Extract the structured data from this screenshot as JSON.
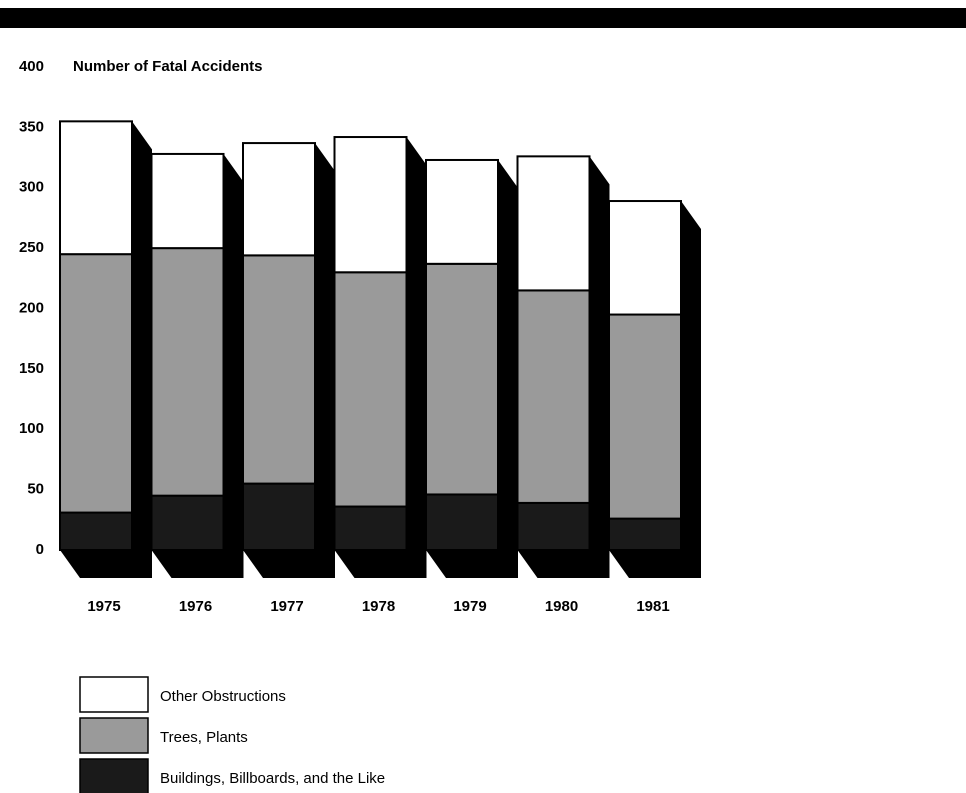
{
  "chart_data": {
    "type": "bar",
    "stacked": true,
    "title": "Number of Fatal Accidents",
    "categories": [
      "1975",
      "1976",
      "1977",
      "1978",
      "1979",
      "1980",
      "1981"
    ],
    "series": [
      {
        "name": "Buildings, Billboards, and the Like",
        "color": "#1a1a1a",
        "values": [
          31,
          45,
          55,
          36,
          46,
          39,
          26
        ]
      },
      {
        "name": "Trees, Plants",
        "color": "#9a9a9a",
        "values": [
          214,
          205,
          189,
          194,
          191,
          176,
          169
        ]
      },
      {
        "name": "Other Obstructions",
        "color": "#ffffff",
        "values": [
          110,
          78,
          93,
          112,
          86,
          111,
          94
        ]
      }
    ],
    "ylim": [
      0,
      400
    ],
    "yticks": [
      0,
      50,
      100,
      150,
      200,
      250,
      300,
      350,
      400
    ]
  }
}
